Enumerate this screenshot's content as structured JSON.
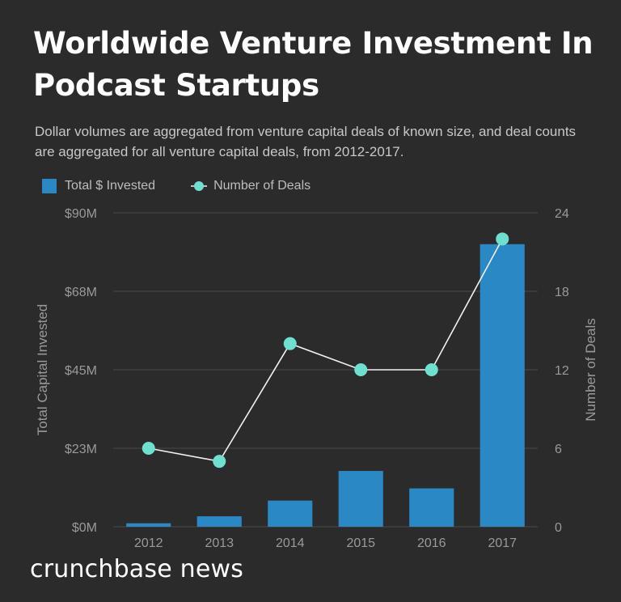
{
  "title": "Worldwide Venture Investment In Podcast Startups",
  "subtitle": "Dollar volumes are aggregated from venture capital deals of known size, and deal counts are aggregated for all venture capital deals, from 2012-2017.",
  "brand": "crunchbase news",
  "colors": {
    "bar": "#2a88c4",
    "point": "#6fe0cf",
    "line": "#f2f2f2",
    "grid": "#4a4a4a",
    "axis_text": "#9a9a9a"
  },
  "chart_data": {
    "type": "bar",
    "categories": [
      "2012",
      "2013",
      "2014",
      "2015",
      "2016",
      "2017"
    ],
    "series": [
      {
        "name": "Total $ Invested",
        "type": "bar",
        "axis": "left",
        "values": [
          1,
          3,
          7.5,
          16,
          11,
          81
        ]
      },
      {
        "name": "Number of Deals",
        "type": "line",
        "axis": "right",
        "values": [
          6,
          5,
          14,
          12,
          12,
          22
        ]
      }
    ],
    "ylabel": "Total Capital Invested",
    "y2label": "Number of Deals",
    "ylim": [
      0,
      90
    ],
    "y2lim": [
      0,
      24
    ],
    "yticks": [
      0,
      22.5,
      45,
      67.5,
      90
    ],
    "ytick_labels": [
      "$0M",
      "$23M",
      "$45M",
      "$68M",
      "$90M"
    ],
    "y2ticks": [
      0,
      6,
      12,
      18,
      24
    ],
    "y2tick_labels": [
      "0",
      "6",
      "12",
      "18",
      "24"
    ],
    "legend": [
      "Total $ Invested",
      "Number of Deals"
    ],
    "legend_position": "top-left",
    "grid": true
  }
}
